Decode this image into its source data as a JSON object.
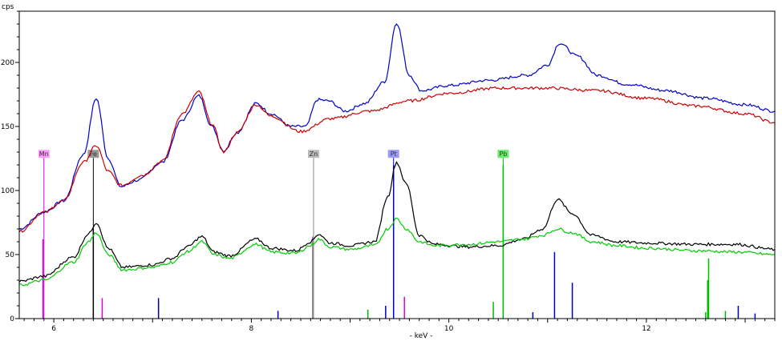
{
  "chart_data": {
    "type": "line",
    "ylabel": "cps",
    "xlabel": "- keV -",
    "xlim": [
      5.65,
      13.3
    ],
    "ylim": [
      0,
      240
    ],
    "x_ticks": [
      6,
      8,
      10,
      12
    ],
    "y_ticks": [
      0,
      50,
      100,
      150,
      200
    ],
    "grid": false,
    "series": [
      {
        "color": "#0000cc",
        "points": [
          [
            5.65,
            70
          ],
          [
            5.9,
            83
          ],
          [
            6.1,
            92
          ],
          [
            6.3,
            128
          ],
          [
            6.43,
            172
          ],
          [
            6.55,
            125
          ],
          [
            6.68,
            103
          ],
          [
            6.85,
            108
          ],
          [
            7.1,
            122
          ],
          [
            7.3,
            155
          ],
          [
            7.47,
            174
          ],
          [
            7.6,
            150
          ],
          [
            7.72,
            131
          ],
          [
            7.85,
            145
          ],
          [
            8.05,
            168
          ],
          [
            8.2,
            160
          ],
          [
            8.4,
            150
          ],
          [
            8.55,
            150
          ],
          [
            8.67,
            171
          ],
          [
            8.78,
            170
          ],
          [
            8.95,
            162
          ],
          [
            9.15,
            168
          ],
          [
            9.35,
            185
          ],
          [
            9.47,
            231
          ],
          [
            9.6,
            190
          ],
          [
            9.72,
            178
          ],
          [
            10.0,
            182
          ],
          [
            10.4,
            186
          ],
          [
            10.8,
            190
          ],
          [
            11.0,
            198
          ],
          [
            11.12,
            215
          ],
          [
            11.3,
            205
          ],
          [
            11.5,
            190
          ],
          [
            11.8,
            183
          ],
          [
            12.2,
            178
          ],
          [
            12.6,
            172
          ],
          [
            13.0,
            167
          ],
          [
            13.3,
            162
          ]
        ]
      },
      {
        "color": "#cc0000",
        "points": [
          [
            5.65,
            68
          ],
          [
            5.9,
            83
          ],
          [
            6.1,
            92
          ],
          [
            6.3,
            122
          ],
          [
            6.43,
            135
          ],
          [
            6.55,
            115
          ],
          [
            6.68,
            104
          ],
          [
            6.9,
            112
          ],
          [
            7.1,
            123
          ],
          [
            7.3,
            160
          ],
          [
            7.47,
            177
          ],
          [
            7.6,
            152
          ],
          [
            7.72,
            130
          ],
          [
            7.85,
            145
          ],
          [
            8.05,
            167
          ],
          [
            8.2,
            158
          ],
          [
            8.5,
            146
          ],
          [
            8.8,
            156
          ],
          [
            9.2,
            162
          ],
          [
            9.6,
            170
          ],
          [
            10.0,
            176
          ],
          [
            10.5,
            180
          ],
          [
            11.0,
            180
          ],
          [
            11.5,
            178
          ],
          [
            12.0,
            172
          ],
          [
            12.5,
            166
          ],
          [
            13.0,
            160
          ],
          [
            13.3,
            153
          ]
        ]
      },
      {
        "color": "#000000",
        "points": [
          [
            5.65,
            29
          ],
          [
            5.9,
            33
          ],
          [
            6.2,
            48
          ],
          [
            6.35,
            66
          ],
          [
            6.43,
            75
          ],
          [
            6.55,
            55
          ],
          [
            6.7,
            40
          ],
          [
            7.0,
            42
          ],
          [
            7.2,
            47
          ],
          [
            7.35,
            56
          ],
          [
            7.5,
            64
          ],
          [
            7.62,
            52
          ],
          [
            7.78,
            49
          ],
          [
            8.05,
            62
          ],
          [
            8.2,
            55
          ],
          [
            8.45,
            53
          ],
          [
            8.6,
            60
          ],
          [
            8.68,
            66
          ],
          [
            8.8,
            59
          ],
          [
            9.0,
            57
          ],
          [
            9.25,
            60
          ],
          [
            9.38,
            95
          ],
          [
            9.47,
            122
          ],
          [
            9.57,
            105
          ],
          [
            9.7,
            65
          ],
          [
            9.85,
            58
          ],
          [
            10.2,
            56
          ],
          [
            10.5,
            57
          ],
          [
            10.75,
            62
          ],
          [
            10.95,
            70
          ],
          [
            11.1,
            93
          ],
          [
            11.25,
            82
          ],
          [
            11.45,
            65
          ],
          [
            11.7,
            60
          ],
          [
            12.0,
            59
          ],
          [
            12.5,
            58
          ],
          [
            12.9,
            58
          ],
          [
            13.3,
            54
          ]
        ]
      },
      {
        "color": "#00cc00",
        "points": [
          [
            5.65,
            26
          ],
          [
            5.9,
            30
          ],
          [
            6.2,
            44
          ],
          [
            6.35,
            60
          ],
          [
            6.43,
            67
          ],
          [
            6.55,
            50
          ],
          [
            6.7,
            38
          ],
          [
            7.0,
            40
          ],
          [
            7.2,
            44
          ],
          [
            7.35,
            52
          ],
          [
            7.5,
            60
          ],
          [
            7.62,
            50
          ],
          [
            7.78,
            47
          ],
          [
            8.05,
            58
          ],
          [
            8.2,
            52
          ],
          [
            8.45,
            51
          ],
          [
            8.6,
            57
          ],
          [
            8.68,
            62
          ],
          [
            8.8,
            56
          ],
          [
            9.0,
            54
          ],
          [
            9.25,
            57
          ],
          [
            9.38,
            70
          ],
          [
            9.47,
            78
          ],
          [
            9.57,
            70
          ],
          [
            9.7,
            60
          ],
          [
            9.85,
            57
          ],
          [
            10.2,
            58
          ],
          [
            10.5,
            60
          ],
          [
            10.75,
            62
          ],
          [
            10.95,
            65
          ],
          [
            11.1,
            70
          ],
          [
            11.25,
            67
          ],
          [
            11.45,
            60
          ],
          [
            11.7,
            57
          ],
          [
            12.0,
            55
          ],
          [
            12.5,
            53
          ],
          [
            12.9,
            52
          ],
          [
            13.3,
            50
          ]
        ]
      }
    ],
    "element_markers": [
      {
        "label": "Mn",
        "energy": 5.9,
        "height": 128,
        "color": "#dd00dd",
        "tag_color": "#ff99ff"
      },
      {
        "label": "Fe",
        "energy": 6.4,
        "height": 128,
        "color": "#000000",
        "tag_color": "#999999"
      },
      {
        "label": "Zn",
        "energy": 8.63,
        "height": 128,
        "color": "#888888",
        "tag_color": "#bbbbbb"
      },
      {
        "label": "Pt",
        "energy": 9.44,
        "height": 128,
        "color": "#0000cc",
        "tag_color": "#9999ff"
      },
      {
        "label": "Pb",
        "energy": 10.55,
        "height": 128,
        "color": "#00bb00",
        "tag_color": "#66ee66"
      }
    ],
    "lines_spectrum": [
      {
        "energy": 5.89,
        "value": 62,
        "color": "#dd00dd"
      },
      {
        "energy": 6.4,
        "value": 70,
        "color": "#000000"
      },
      {
        "energy": 6.49,
        "value": 16,
        "color": "#dd00dd"
      },
      {
        "energy": 7.06,
        "value": 16,
        "color": "#000080"
      },
      {
        "energy": 8.27,
        "value": 6,
        "color": "#0000cc"
      },
      {
        "energy": 8.62,
        "value": 64,
        "color": "#888888"
      },
      {
        "energy": 9.18,
        "value": 7,
        "color": "#00bb00"
      },
      {
        "energy": 9.36,
        "value": 10,
        "color": "#0000cc"
      },
      {
        "energy": 9.44,
        "value": 120,
        "color": "#0000cc"
      },
      {
        "energy": 9.55,
        "value": 17,
        "color": "#dd00dd"
      },
      {
        "energy": 10.45,
        "value": 13,
        "color": "#00bb00"
      },
      {
        "energy": 10.55,
        "value": 120,
        "color": "#00bb00"
      },
      {
        "energy": 10.85,
        "value": 5,
        "color": "#0000cc"
      },
      {
        "energy": 11.07,
        "value": 52,
        "color": "#0000cc"
      },
      {
        "energy": 11.25,
        "value": 28,
        "color": "#0000cc"
      },
      {
        "energy": 12.6,
        "value": 5,
        "color": "#00bb00"
      },
      {
        "energy": 12.62,
        "value": 30,
        "color": "#00bb00"
      },
      {
        "energy": 12.63,
        "value": 47,
        "color": "#00bb00"
      },
      {
        "energy": 12.8,
        "value": 6,
        "color": "#00bb00"
      },
      {
        "energy": 12.93,
        "value": 10,
        "color": "#0000cc"
      },
      {
        "energy": 13.1,
        "value": 4,
        "color": "#0000cc"
      }
    ]
  }
}
